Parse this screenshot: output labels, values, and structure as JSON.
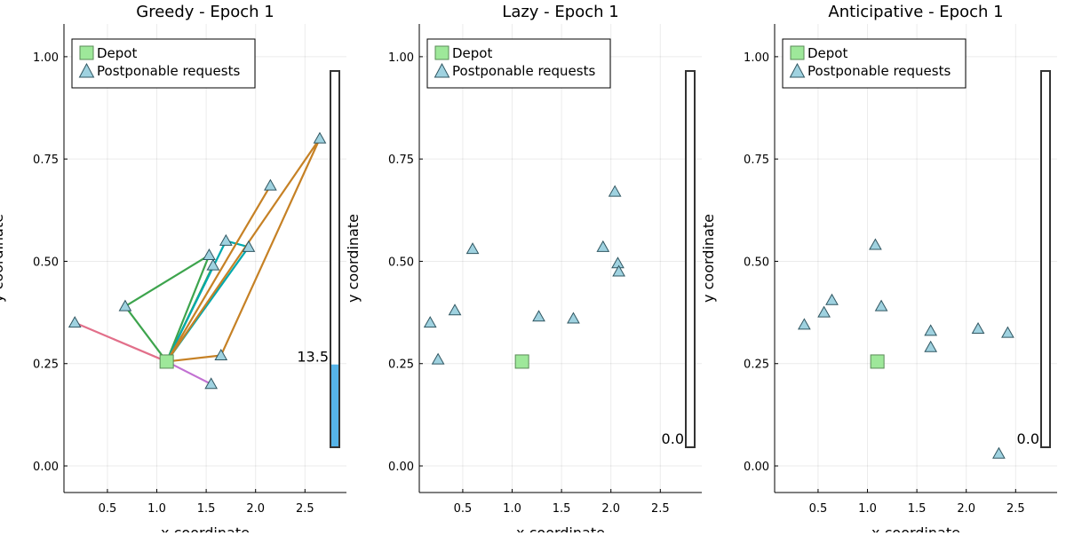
{
  "chart_data": [
    {
      "type": "scatter",
      "title": "Greedy - Epoch 1",
      "xlabel": "x coordinate",
      "ylabel": "y coordinate",
      "xlim": [
        0.06,
        2.92
      ],
      "ylim": [
        -0.065,
        1.08
      ],
      "xticks": [
        "0.5",
        "1.0",
        "1.5",
        "2.0",
        "2.5"
      ],
      "yticks": [
        "0.00",
        "0.25",
        "0.50",
        "0.75",
        "1.00"
      ],
      "grid": true,
      "legend_position": "top-left",
      "legend": [
        "Depot",
        "Postponable requests"
      ],
      "depot": {
        "x": 1.1,
        "y": 0.255
      },
      "requests": [
        {
          "x": 0.17,
          "y": 0.35
        },
        {
          "x": 0.68,
          "y": 0.39
        },
        {
          "x": 1.53,
          "y": 0.515
        },
        {
          "x": 1.57,
          "y": 0.49
        },
        {
          "x": 1.7,
          "y": 0.55
        },
        {
          "x": 1.93,
          "y": 0.535
        },
        {
          "x": 2.15,
          "y": 0.685
        },
        {
          "x": 2.65,
          "y": 0.8
        },
        {
          "x": 1.65,
          "y": 0.27
        },
        {
          "x": 1.55,
          "y": 0.2
        }
      ],
      "routes": [
        {
          "color": "#3da44d",
          "points": [
            [
              1.1,
              0.255
            ],
            [
              0.68,
              0.39
            ],
            [
              1.53,
              0.515
            ],
            [
              1.1,
              0.255
            ]
          ]
        },
        {
          "color": "#3da44d",
          "points": [
            [
              1.1,
              0.255
            ],
            [
              1.57,
              0.49
            ]
          ]
        },
        {
          "color": "#00a9ad",
          "points": [
            [
              1.1,
              0.255
            ],
            [
              1.7,
              0.55
            ],
            [
              1.93,
              0.535
            ],
            [
              1.1,
              0.255
            ]
          ]
        },
        {
          "color": "#c68125",
          "points": [
            [
              1.1,
              0.255
            ],
            [
              2.65,
              0.8
            ],
            [
              1.65,
              0.27
            ],
            [
              1.1,
              0.255
            ]
          ]
        },
        {
          "color": "#c68125",
          "points": [
            [
              1.1,
              0.255
            ],
            [
              2.15,
              0.685
            ],
            [
              1.1,
              0.255
            ]
          ]
        },
        {
          "color": "#e26f8a",
          "points": [
            [
              0.17,
              0.35
            ],
            [
              1.1,
              0.255
            ]
          ]
        },
        {
          "color": "#c271d2",
          "points": [
            [
              1.1,
              0.255
            ],
            [
              1.55,
              0.2
            ]
          ]
        }
      ],
      "bar": {
        "value": 13.5,
        "label": "13.5",
        "fill": "#56b4e9",
        "fill_fraction": 0.22
      }
    },
    {
      "type": "scatter",
      "title": "Lazy - Epoch 1",
      "xlabel": "x coordinate",
      "ylabel": "y coordinate",
      "xlim": [
        0.06,
        2.92
      ],
      "ylim": [
        -0.065,
        1.08
      ],
      "xticks": [
        "0.5",
        "1.0",
        "1.5",
        "2.0",
        "2.5"
      ],
      "yticks": [
        "0.00",
        "0.25",
        "0.50",
        "0.75",
        "1.00"
      ],
      "grid": true,
      "legend_position": "top-left",
      "legend": [
        "Depot",
        "Postponable requests"
      ],
      "depot": {
        "x": 1.1,
        "y": 0.255
      },
      "requests": [
        {
          "x": 0.17,
          "y": 0.35
        },
        {
          "x": 0.25,
          "y": 0.26
        },
        {
          "x": 0.42,
          "y": 0.38
        },
        {
          "x": 0.6,
          "y": 0.53
        },
        {
          "x": 1.27,
          "y": 0.365
        },
        {
          "x": 1.62,
          "y": 0.36
        },
        {
          "x": 1.92,
          "y": 0.535
        },
        {
          "x": 2.04,
          "y": 0.67
        },
        {
          "x": 2.07,
          "y": 0.495
        },
        {
          "x": 2.08,
          "y": 0.475
        }
      ],
      "routes": [],
      "bar": {
        "value": 0.0,
        "label": "0.0",
        "fill": "#56b4e9",
        "fill_fraction": 0
      }
    },
    {
      "type": "scatter",
      "title": "Anticipative - Epoch 1",
      "xlabel": "x coordinate",
      "ylabel": "y coordinate",
      "xlim": [
        0.06,
        2.92
      ],
      "ylim": [
        -0.065,
        1.08
      ],
      "xticks": [
        "0.5",
        "1.0",
        "1.5",
        "2.0",
        "2.5"
      ],
      "yticks": [
        "0.00",
        "0.25",
        "0.50",
        "0.75",
        "1.00"
      ],
      "grid": true,
      "legend_position": "top-left",
      "legend": [
        "Depot",
        "Postponable requests"
      ],
      "depot": {
        "x": 1.1,
        "y": 0.255
      },
      "requests": [
        {
          "x": 0.36,
          "y": 0.345
        },
        {
          "x": 0.56,
          "y": 0.375
        },
        {
          "x": 0.64,
          "y": 0.405
        },
        {
          "x": 1.08,
          "y": 0.54
        },
        {
          "x": 1.14,
          "y": 0.39
        },
        {
          "x": 1.64,
          "y": 0.33
        },
        {
          "x": 1.64,
          "y": 0.29
        },
        {
          "x": 2.12,
          "y": 0.335
        },
        {
          "x": 2.42,
          "y": 0.325
        },
        {
          "x": 2.33,
          "y": 0.03
        }
      ],
      "routes": [],
      "bar": {
        "value": 0.0,
        "label": "0.0",
        "fill": "#56b4e9",
        "fill_fraction": 0
      }
    }
  ],
  "colors": {
    "depot_fill": "#9ee89a",
    "depot_stroke": "#5a8a57",
    "request_fill": "#9fd2e0",
    "request_stroke": "#2f5560"
  }
}
